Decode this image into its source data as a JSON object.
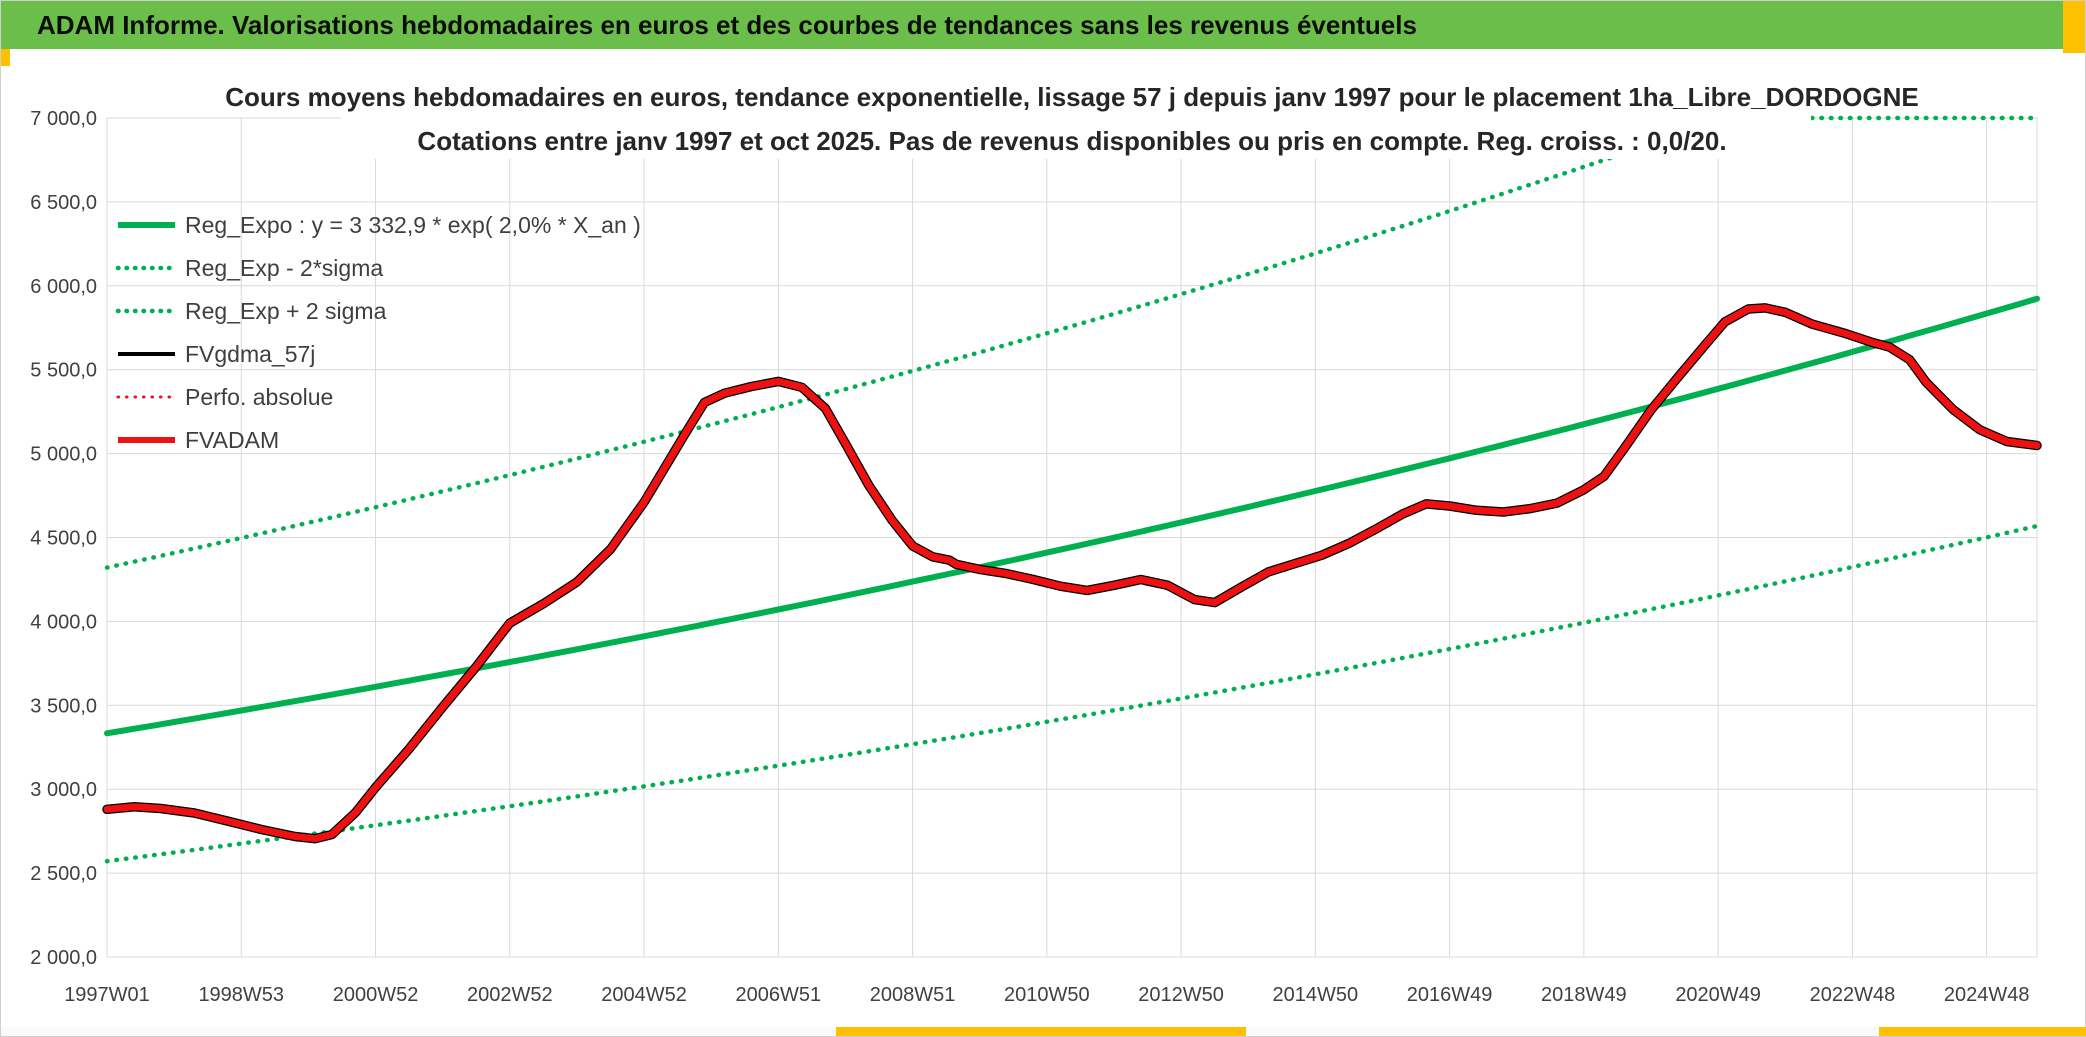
{
  "header": {
    "title": "ADAM Informe. Valorisations hebdomadaires en euros et des courbes de tendances sans les revenus éventuels"
  },
  "colors": {
    "banner_green": "#6CBE4B",
    "accent_yellow": "#FFC000",
    "line_green": "#00B050",
    "line_red": "#EE1111",
    "line_black": "#000000",
    "grid_gray": "#D9D9D9",
    "text_dark": "#3F3F3F"
  },
  "chart_data": {
    "type": "line",
    "title": "Cours moyens hebdomadaires en euros, tendance exponentielle, lissage 57 j depuis janv 1997 pour le placement 1ha_Libre_DORDOGNE",
    "subtitle": "Cotations entre janv 1997 et oct 2025. Pas de revenus disponibles ou pris en compte. Reg. croiss. : 0,0/20.",
    "grid": true,
    "legend_position": "top-left-inside",
    "x_axis": {
      "t_unit": "years since 1997W01",
      "t_max": 28.75,
      "ticks": [
        {
          "label": "1997W01",
          "t": 0
        },
        {
          "label": "1998W53",
          "t": 2
        },
        {
          "label": "2000W52",
          "t": 4
        },
        {
          "label": "2002W52",
          "t": 6
        },
        {
          "label": "2004W52",
          "t": 8
        },
        {
          "label": "2006W51",
          "t": 10
        },
        {
          "label": "2008W51",
          "t": 12
        },
        {
          "label": "2010W50",
          "t": 14
        },
        {
          "label": "2012W50",
          "t": 16
        },
        {
          "label": "2014W50",
          "t": 18
        },
        {
          "label": "2016W49",
          "t": 20
        },
        {
          "label": "2018W49",
          "t": 22
        },
        {
          "label": "2020W49",
          "t": 24
        },
        {
          "label": "2022W48",
          "t": 26
        },
        {
          "label": "2024W48",
          "t": 28
        }
      ]
    },
    "y_axis": {
      "min": 2000,
      "max": 7000,
      "step": 500,
      "ticks": [
        {
          "label": "7 000,0",
          "value": 7000
        },
        {
          "label": "6 500,0",
          "value": 6500
        },
        {
          "label": "6 000,0",
          "value": 6000
        },
        {
          "label": "5 500,0",
          "value": 5500
        },
        {
          "label": "5 000,0",
          "value": 5000
        },
        {
          "label": "4 500,0",
          "value": 4500
        },
        {
          "label": "4 000,0",
          "value": 4000
        },
        {
          "label": "3 500,0",
          "value": 3500
        },
        {
          "label": "3 000,0",
          "value": 3000
        },
        {
          "label": "2 500,0",
          "value": 2500
        },
        {
          "label": "2 000,0",
          "value": 2000
        }
      ]
    },
    "regression": {
      "a": 3332.9,
      "rate_pct_per_year": 2.0,
      "sigma_factor": 1.2964,
      "upper_clipped_at": 7000
    },
    "legend": [
      {
        "label": "Reg_Expo : y = 3 332,9 * exp( 2,0% *  X_an )",
        "color": "#00B050",
        "style": "solid",
        "width": 6
      },
      {
        "label": "Reg_Exp - 2*sigma",
        "color": "#00B050",
        "style": "dotted",
        "width": 4.5
      },
      {
        "label": "Reg_Exp + 2 sigma",
        "color": "#00B050",
        "style": "dotted",
        "width": 4.5
      },
      {
        "label": "FVgdma_57j",
        "color": "#000000",
        "style": "solid",
        "width": 4
      },
      {
        "label": "Perfo. absolue",
        "color": "#EE1111",
        "style": "dotted",
        "width": 3
      },
      {
        "label": "FVADAM",
        "color": "#EE1111",
        "style": "solid",
        "width": 6
      }
    ],
    "series": [
      {
        "name": "Reg_Expo",
        "color": "#00B050",
        "style": "solid",
        "source": "regression"
      },
      {
        "name": "Reg_Exp - 2*sigma",
        "color": "#00B050",
        "style": "dotted",
        "source": "regression_lower"
      },
      {
        "name": "Reg_Exp + 2 sigma",
        "color": "#00B050",
        "style": "dotted",
        "source": "regression_upper"
      },
      {
        "name": "FVgdma_57j",
        "color": "#000000",
        "style": "solid",
        "source": "valuation_points"
      },
      {
        "name": "Perfo. absolue",
        "color": "#EE1111",
        "style": "dotted",
        "source": "valuation_points"
      },
      {
        "name": "FVADAM",
        "color": "#EE1111",
        "style": "solid",
        "source": "valuation_points"
      }
    ],
    "valuation_points": [
      [
        0,
        2880
      ],
      [
        0.4,
        2895
      ],
      [
        0.8,
        2885
      ],
      [
        1.3,
        2858
      ],
      [
        1.8,
        2810
      ],
      [
        2.3,
        2760
      ],
      [
        2.8,
        2718
      ],
      [
        3.1,
        2705
      ],
      [
        3.35,
        2730
      ],
      [
        3.7,
        2860
      ],
      [
        4.0,
        3010
      ],
      [
        4.5,
        3240
      ],
      [
        5.0,
        3490
      ],
      [
        5.5,
        3730
      ],
      [
        6.0,
        3990
      ],
      [
        6.5,
        4105
      ],
      [
        7.0,
        4235
      ],
      [
        7.5,
        4430
      ],
      [
        8.0,
        4710
      ],
      [
        8.3,
        4910
      ],
      [
        8.6,
        5110
      ],
      [
        8.9,
        5305
      ],
      [
        9.2,
        5360
      ],
      [
        9.6,
        5400
      ],
      [
        10.0,
        5430
      ],
      [
        10.35,
        5395
      ],
      [
        10.7,
        5270
      ],
      [
        11.0,
        5060
      ],
      [
        11.35,
        4810
      ],
      [
        11.7,
        4600
      ],
      [
        12.0,
        4450
      ],
      [
        12.3,
        4385
      ],
      [
        12.55,
        4365
      ],
      [
        12.65,
        4340
      ],
      [
        13.0,
        4310
      ],
      [
        13.4,
        4285
      ],
      [
        13.8,
        4250
      ],
      [
        14.2,
        4210
      ],
      [
        14.6,
        4185
      ],
      [
        15.0,
        4215
      ],
      [
        15.4,
        4250
      ],
      [
        15.8,
        4215
      ],
      [
        16.2,
        4130
      ],
      [
        16.5,
        4112
      ],
      [
        16.9,
        4205
      ],
      [
        17.3,
        4295
      ],
      [
        17.7,
        4345
      ],
      [
        18.1,
        4395
      ],
      [
        18.5,
        4465
      ],
      [
        18.9,
        4550
      ],
      [
        19.3,
        4640
      ],
      [
        19.65,
        4700
      ],
      [
        20.0,
        4688
      ],
      [
        20.4,
        4662
      ],
      [
        20.8,
        4652
      ],
      [
        21.2,
        4672
      ],
      [
        21.6,
        4705
      ],
      [
        22.0,
        4785
      ],
      [
        22.3,
        4865
      ],
      [
        22.6,
        5030
      ],
      [
        23.0,
        5260
      ],
      [
        23.4,
        5455
      ],
      [
        23.8,
        5645
      ],
      [
        24.1,
        5785
      ],
      [
        24.45,
        5862
      ],
      [
        24.7,
        5868
      ],
      [
        25.0,
        5842
      ],
      [
        25.4,
        5772
      ],
      [
        25.9,
        5715
      ],
      [
        26.3,
        5662
      ],
      [
        26.55,
        5635
      ],
      [
        26.85,
        5560
      ],
      [
        27.1,
        5425
      ],
      [
        27.5,
        5262
      ],
      [
        27.9,
        5142
      ],
      [
        28.3,
        5072
      ],
      [
        28.75,
        5048
      ]
    ]
  }
}
